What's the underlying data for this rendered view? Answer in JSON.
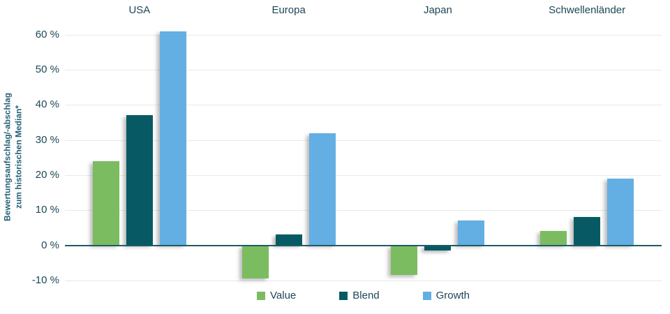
{
  "chart_data": {
    "type": "bar",
    "title": "",
    "categories": [
      "USA",
      "Europa",
      "Japan",
      "Schwellenländer"
    ],
    "series": [
      {
        "name": "Value",
        "color": "#7cbc61",
        "values": [
          24,
          -9.5,
          -8.5,
          4
        ]
      },
      {
        "name": "Blend",
        "color": "#075a63",
        "values": [
          37,
          3,
          -1.5,
          8
        ]
      },
      {
        "name": "Growth",
        "color": "#63afe3",
        "values": [
          61,
          32,
          7,
          19
        ]
      }
    ],
    "ylabel": "Bewertungsaufschlag/-abschlag zum historischen Median*",
    "ylabel_lines": [
      "Bewertungsaufschlag/-abschlag",
      "zum historischen Median*"
    ],
    "yticks": [
      {
        "value": 60,
        "label": "60 %"
      },
      {
        "value": 50,
        "label": "50 %"
      },
      {
        "value": 40,
        "label": "40 %"
      },
      {
        "value": 30,
        "label": "30 %"
      },
      {
        "value": 20,
        "label": "20 %"
      },
      {
        "value": 10,
        "label": "10 %"
      },
      {
        "value": 0,
        "label": "0 %"
      },
      {
        "value": -10,
        "label": "-10 %"
      }
    ],
    "ylim": [
      -13,
      63
    ],
    "grid": true,
    "legend_position": "bottom",
    "colors": {
      "text": "#1d4757",
      "ylabel_text": "#256077",
      "gridline": "#e9e9e9",
      "zero_line": "#1e5a66",
      "background": "#ffffff"
    }
  }
}
